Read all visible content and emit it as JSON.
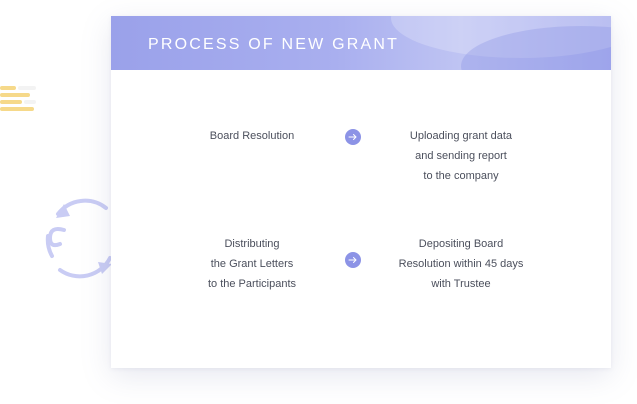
{
  "title": "PROCESS OF NEW GRANT",
  "steps": {
    "board_resolution": "Board Resolution",
    "uploading": "Uploading grant data\nand sending report\nto the company",
    "distributing": "Distributing\nthe Grant Letters\nto the Participants",
    "depositing": "Depositing Board\nResolution within 45 days\nwith Trustee"
  },
  "icons": {
    "arrow_1": "arrow-right-icon",
    "arrow_2": "arrow-right-icon",
    "cycle": "cycle-arrows-icon",
    "lines": "lines-icon"
  },
  "colors": {
    "accent": "#8c93e6",
    "header": "#a4aaee",
    "lines": "#f6d98a",
    "text": "#4b4f5c"
  }
}
